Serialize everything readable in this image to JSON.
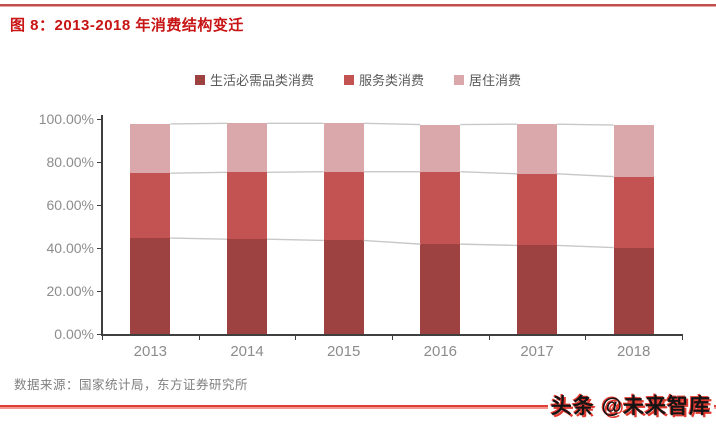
{
  "header": {
    "title": "图 8：2013-2018 年消费结构变迁"
  },
  "footer": {
    "source": "数据来源：国家统计局，东方证券研究所"
  },
  "watermark": {
    "text": "头条 @未来智库"
  },
  "colors": {
    "title_red": "#C81414",
    "top_rule_main": "#C0504D",
    "top_rule_sub": "#E4A3A0",
    "bottom_rule_main": "#DE3F35",
    "bottom_rule_sub": "#F2968F",
    "watermark_shadow": "#E0392F",
    "axis": "#3F3F3F",
    "tick_label": "#8C8C8C",
    "series_line": "#C8C8C8"
  },
  "chart_data": {
    "type": "bar",
    "stacked": true,
    "grid": false,
    "legend_position": "top",
    "categories": [
      "2013",
      "2014",
      "2015",
      "2016",
      "2017",
      "2018"
    ],
    "series": [
      {
        "name": "生活必需品类消费",
        "color": "#9E4141",
        "values": [
          44.6,
          44.1,
          43.5,
          41.8,
          41.2,
          40.2
        ]
      },
      {
        "name": "服务类消费",
        "color": "#C25352",
        "values": [
          30.2,
          31.1,
          32.0,
          33.7,
          33.3,
          33.0
        ]
      },
      {
        "name": "居住消费",
        "color": "#DAA8AA",
        "values": [
          22.9,
          22.8,
          22.5,
          21.9,
          23.1,
          24.0
        ]
      }
    ],
    "xlabel": "",
    "ylabel": "",
    "ylim": [
      0,
      100
    ],
    "ytick_step": 20,
    "ytick_labels_top_to_bottom": [
      "100.00%",
      "80.00%",
      "60.00%",
      "40.00%",
      "20.00%",
      "0.00%"
    ],
    "series_connector_lines": true
  }
}
